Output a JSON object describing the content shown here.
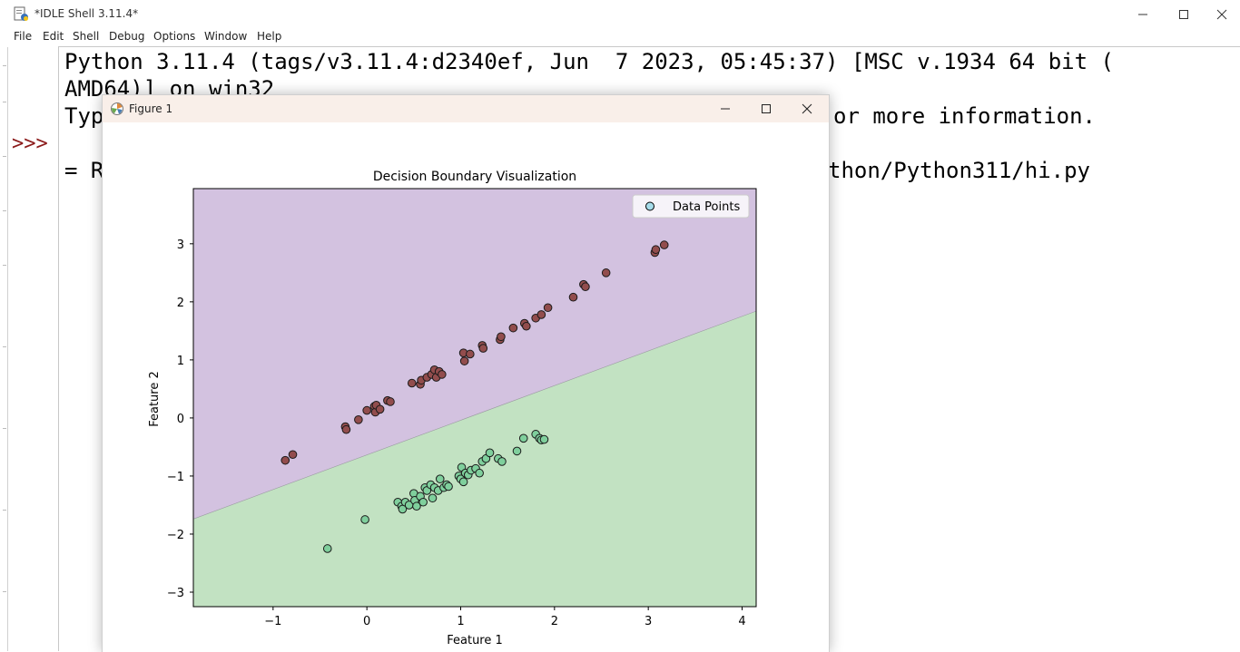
{
  "idle": {
    "title": "*IDLE Shell 3.11.4*",
    "menu": [
      "File",
      "Edit",
      "Shell",
      "Debug",
      "Options",
      "Window",
      "Help"
    ],
    "lines": [
      "Python 3.11.4 (tags/v3.11.4:d2340ef, Jun  7 2023, 05:45:37) [MSC v.1934 64 bit (",
      "AMD64)] on win32",
      "Typ",
      "or more information.",
      "= R",
      "thon/Python311/hi.py"
    ],
    "prompt": ">>>"
  },
  "figure": {
    "title": "Figure 1"
  },
  "chart_data": {
    "type": "scatter",
    "title": "Decision Boundary Visualization",
    "xlabel": "Feature 1",
    "ylabel": "Feature 2",
    "xlim": [
      -1.85,
      4.15
    ],
    "ylim": [
      -3.25,
      3.95
    ],
    "xticks": [
      -1,
      0,
      1,
      2,
      3,
      4
    ],
    "yticks": [
      -3,
      -2,
      -1,
      0,
      1,
      2,
      3
    ],
    "legend": {
      "label": "Data Points",
      "placement": "top-right"
    },
    "decision_boundary": {
      "points": [
        [
          -1.85,
          -1.74
        ],
        [
          4.15,
          1.84
        ]
      ]
    },
    "regions": {
      "upper_color": "#d3c2e0",
      "lower_color": "#c2e2c2"
    },
    "colors": {
      "class_0": "#924d4d",
      "class_1": "#7fcf9c"
    },
    "series": [
      {
        "class": 0,
        "x": [
          -0.87,
          -0.79,
          -0.23,
          -0.22,
          -0.09,
          0.0,
          0.08,
          0.09,
          0.1,
          0.14,
          0.22,
          0.25,
          0.48,
          0.57,
          0.58,
          0.64,
          0.69,
          0.72,
          0.74,
          0.77,
          0.8,
          1.03,
          1.04,
          1.1,
          1.23,
          1.24,
          1.42,
          1.43,
          1.56,
          1.68,
          1.7,
          1.8,
          1.86,
          1.93,
          2.2,
          2.31,
          2.33,
          2.55,
          3.07,
          3.08,
          3.17
        ],
        "y": [
          -0.73,
          -0.63,
          -0.15,
          -0.2,
          -0.03,
          0.13,
          0.2,
          0.1,
          0.22,
          0.15,
          0.3,
          0.28,
          0.6,
          0.58,
          0.65,
          0.7,
          0.75,
          0.83,
          0.7,
          0.8,
          0.75,
          1.12,
          0.98,
          1.1,
          1.25,
          1.2,
          1.35,
          1.4,
          1.55,
          1.63,
          1.58,
          1.72,
          1.78,
          1.9,
          2.08,
          2.3,
          2.26,
          2.5,
          2.85,
          2.9,
          2.98
        ]
      },
      {
        "class": 1,
        "x": [
          -0.42,
          -0.02,
          0.33,
          0.37,
          0.38,
          0.41,
          0.45,
          0.5,
          0.51,
          0.53,
          0.57,
          0.6,
          0.62,
          0.64,
          0.68,
          0.7,
          0.72,
          0.76,
          0.78,
          0.82,
          0.85,
          0.87,
          0.98,
          1.0,
          1.01,
          1.03,
          1.05,
          1.08,
          1.11,
          1.16,
          1.2,
          1.23,
          1.27,
          1.31,
          1.4,
          1.44,
          1.6,
          1.67,
          1.8,
          1.84,
          1.86,
          1.89
        ],
        "y": [
          -2.25,
          -1.75,
          -1.45,
          -1.52,
          -1.57,
          -1.45,
          -1.5,
          -1.3,
          -1.42,
          -1.52,
          -1.35,
          -1.45,
          -1.2,
          -1.25,
          -1.15,
          -1.38,
          -1.2,
          -1.25,
          -1.05,
          -1.2,
          -1.15,
          -1.18,
          -1.0,
          -1.05,
          -0.85,
          -1.1,
          -0.95,
          -0.98,
          -0.9,
          -0.87,
          -0.95,
          -0.75,
          -0.7,
          -0.6,
          -0.7,
          -0.75,
          -0.57,
          -0.35,
          -0.28,
          -0.35,
          -0.38,
          -0.37
        ]
      }
    ]
  }
}
